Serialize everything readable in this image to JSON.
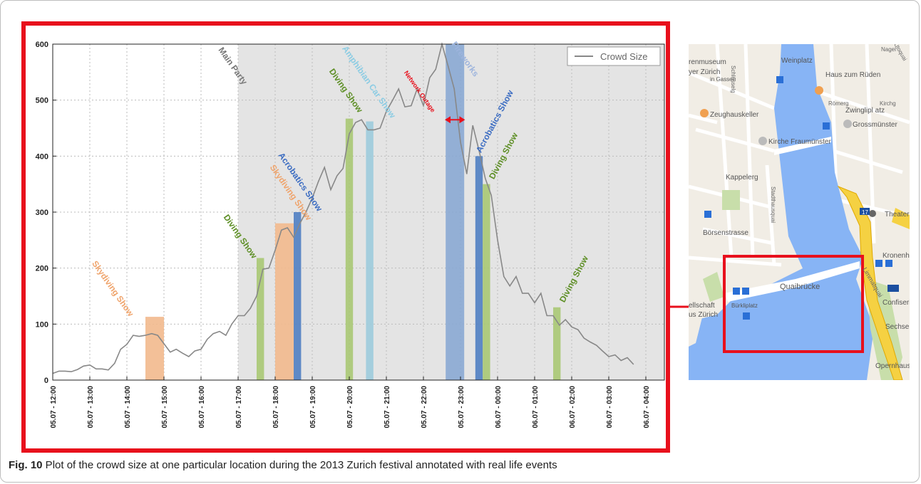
{
  "caption": {
    "label": "Fig. 10",
    "text": " Plot of the crowd size at one particular location during the 2013 Zurich festival annotated with real life events"
  },
  "colors": {
    "highlight_border": "#e8101c",
    "party_shade": "#e4e4e4",
    "crowd_line": "#888888",
    "diving": "#a9c873",
    "skydiving": "#f2b98d",
    "acrobatics": "#4f7ec2",
    "amphibian": "#9ccbdb",
    "fireworks": "#89a9d3",
    "network": "#e8101c",
    "diving_label": "#5e8f26",
    "skydiving_label": "#efa46c",
    "acrobatics_label": "#3b6cc2",
    "amphibian_label": "#8ccce3",
    "fireworks_label": "#9db4dd",
    "party_label": "#777777"
  },
  "chart_data": {
    "type": "line",
    "x_unit": "hours since 05.07 - 12:00",
    "ylim": [
      0,
      600
    ],
    "xlim": [
      0,
      16.5
    ],
    "yticks": [
      0,
      100,
      200,
      300,
      400,
      500,
      600
    ],
    "xticks": [
      "05.07 - 12:00",
      "05.07 - 13:00",
      "05.07 - 14:00",
      "05.07 - 15:00",
      "05.07 - 16:00",
      "05.07 - 17:00",
      "05.07 - 18:00",
      "05.07 - 19:00",
      "05.07 - 20:00",
      "05.07 - 21:00",
      "05.07 - 22:00",
      "05.07 - 23:00",
      "06.07 - 00:00",
      "06.07 - 01:00",
      "06.07 - 02:00",
      "06.07 - 03:00",
      "06.07 - 04:00"
    ],
    "grid": true,
    "legend": {
      "position": "top-right",
      "entries": [
        "Crowd Size"
      ]
    },
    "series": [
      {
        "name": "Crowd Size",
        "points": [
          [
            0.0,
            12
          ],
          [
            0.17,
            16
          ],
          [
            0.33,
            16
          ],
          [
            0.5,
            15
          ],
          [
            0.67,
            19
          ],
          [
            0.83,
            25
          ],
          [
            1.0,
            27
          ],
          [
            1.17,
            20
          ],
          [
            1.33,
            20
          ],
          [
            1.5,
            18
          ],
          [
            1.67,
            30
          ],
          [
            1.83,
            55
          ],
          [
            2.0,
            64
          ],
          [
            2.17,
            80
          ],
          [
            2.33,
            78
          ],
          [
            2.5,
            80
          ],
          [
            2.67,
            83
          ],
          [
            2.83,
            80
          ],
          [
            3.0,
            65
          ],
          [
            3.17,
            50
          ],
          [
            3.33,
            55
          ],
          [
            3.5,
            48
          ],
          [
            3.67,
            42
          ],
          [
            3.83,
            52
          ],
          [
            4.0,
            55
          ],
          [
            4.17,
            73
          ],
          [
            4.33,
            83
          ],
          [
            4.5,
            87
          ],
          [
            4.67,
            80
          ],
          [
            4.83,
            100
          ],
          [
            5.0,
            115
          ],
          [
            5.17,
            115
          ],
          [
            5.33,
            128
          ],
          [
            5.5,
            150
          ],
          [
            5.67,
            198
          ],
          [
            5.83,
            200
          ],
          [
            6.0,
            232
          ],
          [
            6.17,
            268
          ],
          [
            6.33,
            272
          ],
          [
            6.5,
            255
          ],
          [
            6.67,
            280
          ],
          [
            6.83,
            300
          ],
          [
            7.0,
            325
          ],
          [
            7.17,
            355
          ],
          [
            7.33,
            380
          ],
          [
            7.5,
            340
          ],
          [
            7.67,
            365
          ],
          [
            7.83,
            378
          ],
          [
            8.0,
            440
          ],
          [
            8.17,
            460
          ],
          [
            8.33,
            465
          ],
          [
            8.5,
            447
          ],
          [
            8.67,
            447
          ],
          [
            8.83,
            450
          ],
          [
            9.0,
            480
          ],
          [
            9.17,
            500
          ],
          [
            9.33,
            520
          ],
          [
            9.5,
            488
          ],
          [
            9.67,
            490
          ],
          [
            9.83,
            520
          ],
          [
            10.0,
            490
          ],
          [
            10.17,
            540
          ],
          [
            10.33,
            555
          ],
          [
            10.5,
            600
          ],
          [
            10.67,
            560
          ],
          [
            10.83,
            520
          ],
          [
            11.0,
            425
          ],
          [
            11.17,
            368
          ],
          [
            11.33,
            455
          ],
          [
            11.5,
            410
          ],
          [
            11.67,
            360
          ],
          [
            11.83,
            330
          ],
          [
            12.0,
            250
          ],
          [
            12.17,
            185
          ],
          [
            12.33,
            168
          ],
          [
            12.5,
            185
          ],
          [
            12.67,
            155
          ],
          [
            12.83,
            155
          ],
          [
            13.0,
            138
          ],
          [
            13.17,
            155
          ],
          [
            13.33,
            115
          ],
          [
            13.5,
            115
          ],
          [
            13.67,
            98
          ],
          [
            13.83,
            108
          ],
          [
            14.0,
            95
          ],
          [
            14.17,
            90
          ],
          [
            14.33,
            75
          ],
          [
            14.5,
            68
          ],
          [
            14.67,
            62
          ],
          [
            14.83,
            52
          ],
          [
            15.0,
            42
          ],
          [
            15.17,
            45
          ],
          [
            15.33,
            35
          ],
          [
            15.5,
            40
          ],
          [
            15.67,
            28
          ]
        ]
      }
    ],
    "party_region": {
      "start": 5.0,
      "end": 16.5,
      "label": "Main Party"
    },
    "events": [
      {
        "label": "Skydiving Show",
        "start": 2.5,
        "end": 3.0,
        "height": 113,
        "kind": "skydiving"
      },
      {
        "label": "Diving Show",
        "start": 5.5,
        "end": 5.7,
        "height": 218,
        "kind": "diving"
      },
      {
        "label": "Skydiving Show",
        "start": 6.0,
        "end": 6.5,
        "height": 280,
        "kind": "skydiving"
      },
      {
        "label": "Acrobatics Show",
        "start": 6.5,
        "end": 6.7,
        "height": 300,
        "kind": "acrobatics"
      },
      {
        "label": "Diving Show",
        "start": 7.9,
        "end": 8.1,
        "height": 467,
        "kind": "diving"
      },
      {
        "label": "Amphibian Car Show",
        "start": 8.45,
        "end": 8.65,
        "height": 462,
        "kind": "amphibian"
      },
      {
        "label": "Fireworks",
        "start": 10.6,
        "end": 11.1,
        "height": 600,
        "kind": "fireworks"
      },
      {
        "label": "Acrobatics Show",
        "start": 11.4,
        "end": 11.6,
        "height": 400,
        "kind": "acrobatics"
      },
      {
        "label": "Diving Show",
        "start": 11.6,
        "end": 11.8,
        "height": 350,
        "kind": "diving"
      },
      {
        "label": "Diving Show",
        "start": 13.5,
        "end": 13.7,
        "height": 130,
        "kind": "diving"
      }
    ],
    "network_outage": {
      "label": "Network Outage",
      "start": 10.5,
      "end": 11.2,
      "y": 465
    }
  },
  "map": {
    "labels": [
      "Weinplatz",
      "Haus zum Rüden",
      "Zeughauskeller",
      "Zwinglipl atz",
      "Grossmünster",
      "Kirche Fraumünster",
      "Kappelerg",
      "Börsenstrasse",
      "Stadthausquai",
      "Theater",
      "Kronenha",
      "Quaibrücke",
      "Bürkliplatz",
      "Confiseri",
      "Sechsel",
      "Opernhaus",
      "ellschaft",
      "us Zürich",
      "Limmatquai",
      "Römerg",
      "Kirchg",
      "Nagel",
      "Utoquai",
      "Schlüsselg",
      "in Gassen",
      "renmuseum",
      "yer Zürich",
      "17"
    ],
    "colors": {
      "water": "#87b4f5",
      "land": "#f1ede5",
      "park": "#c8deaa",
      "road_major": "#f5d142",
      "road_minor": "#ffffff",
      "highlight": "#e8101c"
    }
  }
}
